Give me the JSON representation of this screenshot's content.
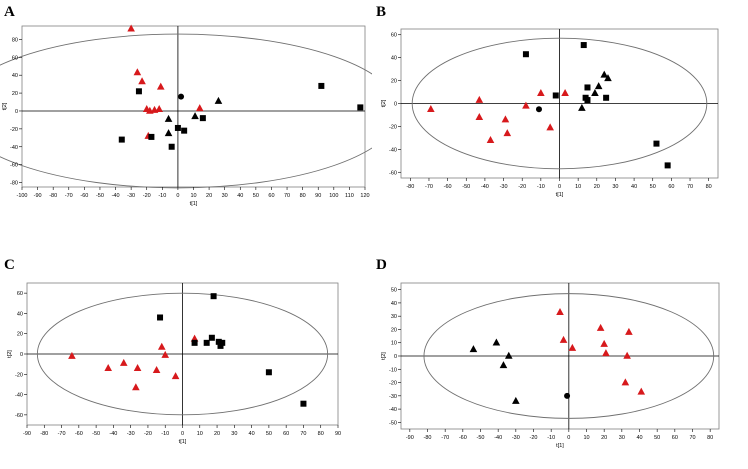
{
  "colors": {
    "group1": "#d7191c",
    "group2": "#000000",
    "frame": "#808080",
    "ellipse": "#707070"
  },
  "chart_data": [
    {
      "panel": "A",
      "type": "scatter",
      "xlabel": "t[1]",
      "ylabel": "t[2]",
      "xlim": [
        -100,
        120
      ],
      "ylim": [
        -85,
        95
      ],
      "xticks": [
        -100,
        -90,
        -80,
        -70,
        -60,
        -50,
        -40,
        -30,
        -20,
        -10,
        0,
        10,
        20,
        30,
        40,
        50,
        60,
        70,
        80,
        90,
        100,
        110,
        120
      ],
      "yticks": [
        -80,
        -60,
        -40,
        -20,
        0,
        20,
        40,
        60,
        80
      ],
      "ellipse": {
        "cx": 0,
        "cy": 0,
        "rx": 142,
        "ry": 86
      },
      "points": [
        {
          "x": -30,
          "y": 92,
          "marker": "triangle",
          "color": "red"
        },
        {
          "x": -26,
          "y": 43,
          "marker": "triangle",
          "color": "red"
        },
        {
          "x": -23,
          "y": 33,
          "marker": "triangle",
          "color": "red"
        },
        {
          "x": -11,
          "y": 27,
          "marker": "triangle",
          "color": "red"
        },
        {
          "x": -20,
          "y": 2,
          "marker": "triangle",
          "color": "red"
        },
        {
          "x": -15,
          "y": 1,
          "marker": "triangle",
          "color": "red"
        },
        {
          "x": -12,
          "y": 2,
          "marker": "triangle",
          "color": "red"
        },
        {
          "x": -18,
          "y": 0,
          "marker": "triangle",
          "color": "red"
        },
        {
          "x": -19,
          "y": -28,
          "marker": "triangle",
          "color": "red"
        },
        {
          "x": 14,
          "y": 3,
          "marker": "triangle",
          "color": "red"
        },
        {
          "x": -25,
          "y": 22,
          "marker": "square",
          "color": "black"
        },
        {
          "x": -36,
          "y": -32,
          "marker": "square",
          "color": "black"
        },
        {
          "x": -17,
          "y": -29,
          "marker": "square",
          "color": "black"
        },
        {
          "x": -4,
          "y": -40,
          "marker": "square",
          "color": "black"
        },
        {
          "x": 0,
          "y": -19,
          "marker": "square",
          "color": "black"
        },
        {
          "x": 4,
          "y": -22,
          "marker": "square",
          "color": "black"
        },
        {
          "x": 16,
          "y": -8,
          "marker": "square",
          "color": "black"
        },
        {
          "x": 92,
          "y": 28,
          "marker": "square",
          "color": "black"
        },
        {
          "x": 117,
          "y": 4,
          "marker": "square",
          "color": "black"
        },
        {
          "x": -6,
          "y": -25,
          "marker": "triangle",
          "color": "black"
        },
        {
          "x": -6,
          "y": -9,
          "marker": "triangle",
          "color": "black"
        },
        {
          "x": 11,
          "y": -6,
          "marker": "triangle",
          "color": "black"
        },
        {
          "x": 26,
          "y": 11,
          "marker": "triangle",
          "color": "black"
        },
        {
          "x": 2,
          "y": 16,
          "marker": "circle",
          "color": "black"
        }
      ]
    },
    {
      "panel": "B",
      "type": "scatter",
      "xlabel": "t[1]",
      "ylabel": "t[2]",
      "xlim": [
        -85,
        85
      ],
      "ylim": [
        -65,
        65
      ],
      "xticks": [
        -80,
        -70,
        -60,
        -50,
        -40,
        -30,
        -20,
        -10,
        0,
        10,
        20,
        30,
        40,
        50,
        60,
        70,
        80
      ],
      "yticks": [
        -60,
        -40,
        -20,
        0,
        20,
        40,
        60
      ],
      "ellipse": {
        "cx": 0,
        "cy": 0,
        "rx": 79,
        "ry": 57
      },
      "points": [
        {
          "x": -69,
          "y": -5,
          "marker": "triangle",
          "color": "red"
        },
        {
          "x": -43,
          "y": 3,
          "marker": "triangle",
          "color": "red"
        },
        {
          "x": -43,
          "y": -12,
          "marker": "triangle",
          "color": "red"
        },
        {
          "x": -37,
          "y": -32,
          "marker": "triangle",
          "color": "red"
        },
        {
          "x": -29,
          "y": -14,
          "marker": "triangle",
          "color": "red"
        },
        {
          "x": -28,
          "y": -26,
          "marker": "triangle",
          "color": "red"
        },
        {
          "x": -18,
          "y": -2,
          "marker": "triangle",
          "color": "red"
        },
        {
          "x": -10,
          "y": 9,
          "marker": "triangle",
          "color": "red"
        },
        {
          "x": -5,
          "y": -21,
          "marker": "triangle",
          "color": "red"
        },
        {
          "x": 3,
          "y": 9,
          "marker": "triangle",
          "color": "red"
        },
        {
          "x": -18,
          "y": 43,
          "marker": "square",
          "color": "black"
        },
        {
          "x": -2,
          "y": 7,
          "marker": "square",
          "color": "black"
        },
        {
          "x": 13,
          "y": 51,
          "marker": "square",
          "color": "black"
        },
        {
          "x": 15,
          "y": 14,
          "marker": "square",
          "color": "black"
        },
        {
          "x": 15,
          "y": 3,
          "marker": "square",
          "color": "black"
        },
        {
          "x": 14,
          "y": 5,
          "marker": "square",
          "color": "black"
        },
        {
          "x": 25,
          "y": 5,
          "marker": "square",
          "color": "black"
        },
        {
          "x": 52,
          "y": -35,
          "marker": "square",
          "color": "black"
        },
        {
          "x": 58,
          "y": -54,
          "marker": "square",
          "color": "black"
        },
        {
          "x": 12,
          "y": -4,
          "marker": "triangle",
          "color": "black"
        },
        {
          "x": 19,
          "y": 9,
          "marker": "triangle",
          "color": "black"
        },
        {
          "x": 21,
          "y": 15,
          "marker": "triangle",
          "color": "black"
        },
        {
          "x": 24,
          "y": 25,
          "marker": "triangle",
          "color": "black"
        },
        {
          "x": 26,
          "y": 22,
          "marker": "triangle",
          "color": "black"
        },
        {
          "x": -11,
          "y": -5,
          "marker": "circle",
          "color": "black"
        }
      ]
    },
    {
      "panel": "C",
      "type": "scatter",
      "xlabel": "t[1]",
      "ylabel": "t[2]",
      "xlim": [
        -90,
        90
      ],
      "ylim": [
        -70,
        70
      ],
      "xticks": [
        -90,
        -80,
        -70,
        -60,
        -50,
        -40,
        -30,
        -20,
        -10,
        0,
        10,
        20,
        30,
        40,
        50,
        60,
        70,
        80,
        90
      ],
      "yticks": [
        -60,
        -40,
        -20,
        0,
        20,
        40,
        60
      ],
      "ellipse": {
        "cx": 0,
        "cy": 0,
        "rx": 84,
        "ry": 60
      },
      "points": [
        {
          "x": -64,
          "y": -2,
          "marker": "triangle",
          "color": "red"
        },
        {
          "x": -43,
          "y": -14,
          "marker": "triangle",
          "color": "red"
        },
        {
          "x": -34,
          "y": -9,
          "marker": "triangle",
          "color": "red"
        },
        {
          "x": -26,
          "y": -14,
          "marker": "triangle",
          "color": "red"
        },
        {
          "x": -27,
          "y": -33,
          "marker": "triangle",
          "color": "red"
        },
        {
          "x": -15,
          "y": -16,
          "marker": "triangle",
          "color": "red"
        },
        {
          "x": -12,
          "y": 7,
          "marker": "triangle",
          "color": "red"
        },
        {
          "x": -10,
          "y": -1,
          "marker": "triangle",
          "color": "red"
        },
        {
          "x": -4,
          "y": -22,
          "marker": "triangle",
          "color": "red"
        },
        {
          "x": 7,
          "y": 15,
          "marker": "triangle",
          "color": "red"
        },
        {
          "x": -13,
          "y": 36,
          "marker": "square",
          "color": "black"
        },
        {
          "x": 7,
          "y": 11,
          "marker": "square",
          "color": "black"
        },
        {
          "x": 14,
          "y": 11,
          "marker": "square",
          "color": "black"
        },
        {
          "x": 17,
          "y": 16,
          "marker": "square",
          "color": "black"
        },
        {
          "x": 18,
          "y": 57,
          "marker": "square",
          "color": "black"
        },
        {
          "x": 21,
          "y": 12,
          "marker": "square",
          "color": "black"
        },
        {
          "x": 23,
          "y": 11,
          "marker": "square",
          "color": "black"
        },
        {
          "x": 22,
          "y": 8,
          "marker": "square",
          "color": "black"
        },
        {
          "x": 50,
          "y": -18,
          "marker": "square",
          "color": "black"
        },
        {
          "x": 70,
          "y": -49,
          "marker": "square",
          "color": "black"
        }
      ]
    },
    {
      "panel": "D",
      "type": "scatter",
      "xlabel": "t[1]",
      "ylabel": "t[2]",
      "xlim": [
        -95,
        85
      ],
      "ylim": [
        -55,
        55
      ],
      "xticks": [
        -90,
        -80,
        -70,
        -60,
        -50,
        -40,
        -30,
        -20,
        -10,
        0,
        10,
        20,
        30,
        40,
        50,
        60,
        70,
        80
      ],
      "yticks": [
        -50,
        -40,
        -30,
        -20,
        -10,
        0,
        10,
        20,
        30,
        40,
        50
      ],
      "ellipse": {
        "cx": 0,
        "cy": 0,
        "rx": 82,
        "ry": 47
      },
      "points": [
        {
          "x": -5,
          "y": 33,
          "marker": "triangle",
          "color": "red"
        },
        {
          "x": -3,
          "y": 12,
          "marker": "triangle",
          "color": "red"
        },
        {
          "x": 2,
          "y": 6,
          "marker": "triangle",
          "color": "red"
        },
        {
          "x": 18,
          "y": 21,
          "marker": "triangle",
          "color": "red"
        },
        {
          "x": 20,
          "y": 9,
          "marker": "triangle",
          "color": "red"
        },
        {
          "x": 21,
          "y": 2,
          "marker": "triangle",
          "color": "red"
        },
        {
          "x": 34,
          "y": 18,
          "marker": "triangle",
          "color": "red"
        },
        {
          "x": 33,
          "y": 0,
          "marker": "triangle",
          "color": "red"
        },
        {
          "x": 32,
          "y": -20,
          "marker": "triangle",
          "color": "red"
        },
        {
          "x": 41,
          "y": -27,
          "marker": "triangle",
          "color": "red"
        },
        {
          "x": -54,
          "y": 5,
          "marker": "triangle",
          "color": "black"
        },
        {
          "x": -41,
          "y": 10,
          "marker": "triangle",
          "color": "black"
        },
        {
          "x": -34,
          "y": 0,
          "marker": "triangle",
          "color": "black"
        },
        {
          "x": -37,
          "y": -7,
          "marker": "triangle",
          "color": "black"
        },
        {
          "x": -30,
          "y": -34,
          "marker": "triangle",
          "color": "black"
        },
        {
          "x": -1,
          "y": -30,
          "marker": "circle",
          "color": "black"
        }
      ]
    }
  ],
  "panels": {
    "a": "A",
    "b": "B",
    "c": "C",
    "d": "D"
  }
}
